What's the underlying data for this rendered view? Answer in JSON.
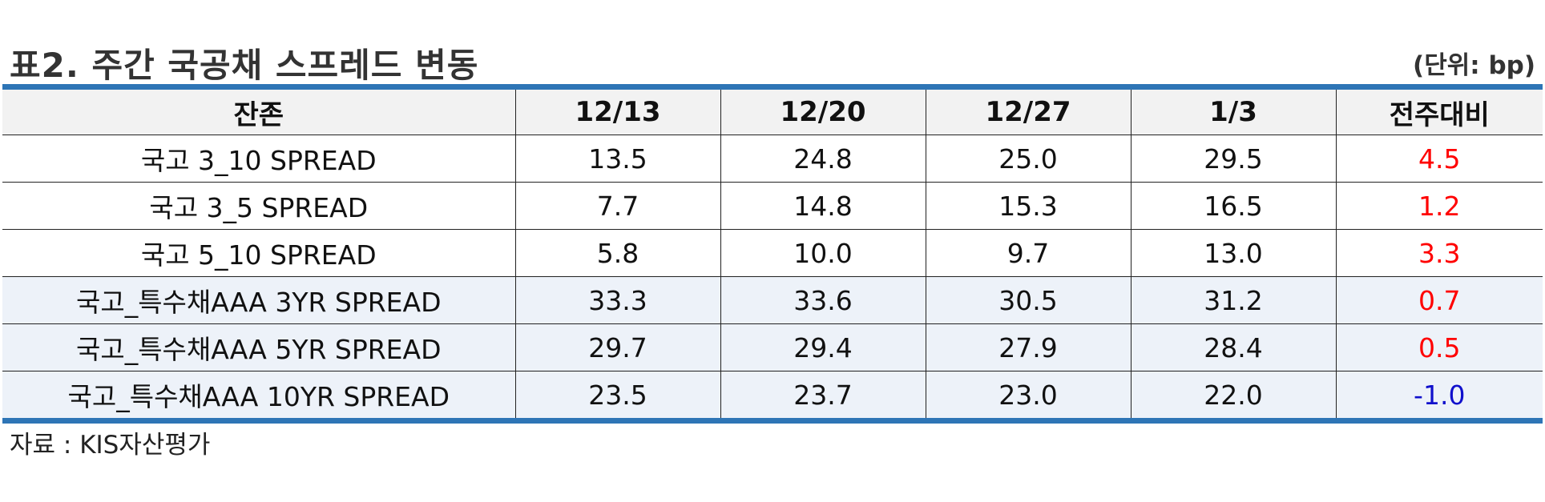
{
  "title": "표2. 주간 국공채 스프레드 변동",
  "unit": "(단위: bp)",
  "table": {
    "headers": [
      "잔존",
      "12/13",
      "12/20",
      "12/27",
      "1/3",
      "전주대비"
    ],
    "rows": [
      [
        "국고 3_10 SPREAD",
        "13.5",
        "24.8",
        "25.0",
        "29.5",
        "4.5"
      ],
      [
        "국고 3_5 SPREAD",
        "7.7",
        "14.8",
        "15.3",
        "16.5",
        "1.2"
      ],
      [
        "국고 5_10 SPREAD",
        "5.8",
        "10.0",
        "9.7",
        "13.0",
        "3.3"
      ],
      [
        "국고_특수채AAA 3YR SPREAD",
        "33.3",
        "33.6",
        "30.5",
        "31.2",
        "0.7"
      ],
      [
        "국고_특수채AAA 5YR SPREAD",
        "29.7",
        "29.4",
        "27.9",
        "28.4",
        "0.5"
      ],
      [
        "국고_특수채AAA 10YR SPREAD",
        "23.5",
        "23.7",
        "23.0",
        "22.0",
        "-1.0"
      ]
    ]
  },
  "source": "자료 : KIS자산평가",
  "colors": {
    "accent_border": "#2e75b6",
    "header_bg": "#f2f2f2",
    "shaded_row_bg": "#edf2f9",
    "positive_change": "#ff0000",
    "negative_change": "#1010cc"
  }
}
